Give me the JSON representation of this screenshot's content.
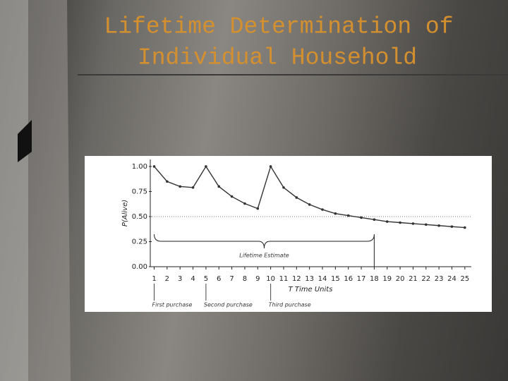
{
  "slide": {
    "title_lines": [
      "Lifetime Determination of",
      "Individual Household"
    ]
  },
  "chart_data": {
    "type": "line",
    "x_label": "T Time Units",
    "y_label": "P(Alive)",
    "x": [
      1,
      2,
      3,
      4,
      5,
      6,
      7,
      8,
      9,
      10,
      11,
      12,
      13,
      14,
      15,
      16,
      17,
      18,
      19,
      20,
      21,
      22,
      23,
      24,
      25
    ],
    "series": [
      {
        "name": "P(Alive)",
        "color": "#333333",
        "values": [
          1.0,
          0.85,
          0.8,
          0.79,
          1.0,
          0.8,
          0.7,
          0.63,
          0.58,
          1.0,
          0.79,
          0.69,
          0.62,
          0.57,
          0.53,
          0.51,
          0.49,
          0.47,
          0.45,
          0.44,
          0.43,
          0.42,
          0.41,
          0.4,
          0.39
        ]
      }
    ],
    "xlim": [
      0.7,
      25.5
    ],
    "ylim": [
      0,
      1.07
    ],
    "xticks": [
      1,
      2,
      3,
      4,
      5,
      6,
      7,
      8,
      9,
      10,
      11,
      12,
      13,
      14,
      15,
      16,
      17,
      18,
      19,
      20,
      21,
      22,
      23,
      24,
      25
    ],
    "yticks": [
      {
        "value": 0,
        "label": "0.00"
      },
      {
        "value": 0.25,
        "label": "0.25"
      },
      {
        "value": 0.5,
        "label": "0.50"
      },
      {
        "value": 0.75,
        "label": "0.75"
      },
      {
        "value": 1,
        "label": "1.00"
      }
    ],
    "reference_line": 0.5,
    "annotations": [
      {
        "text": "First purchase",
        "x": 1
      },
      {
        "text": "Second purchase",
        "x": 5
      },
      {
        "text": "Third purchase",
        "x": 10
      }
    ],
    "range_annotation": {
      "text": "Lifetime Estimate",
      "x_range": [
        1,
        18
      ]
    }
  }
}
